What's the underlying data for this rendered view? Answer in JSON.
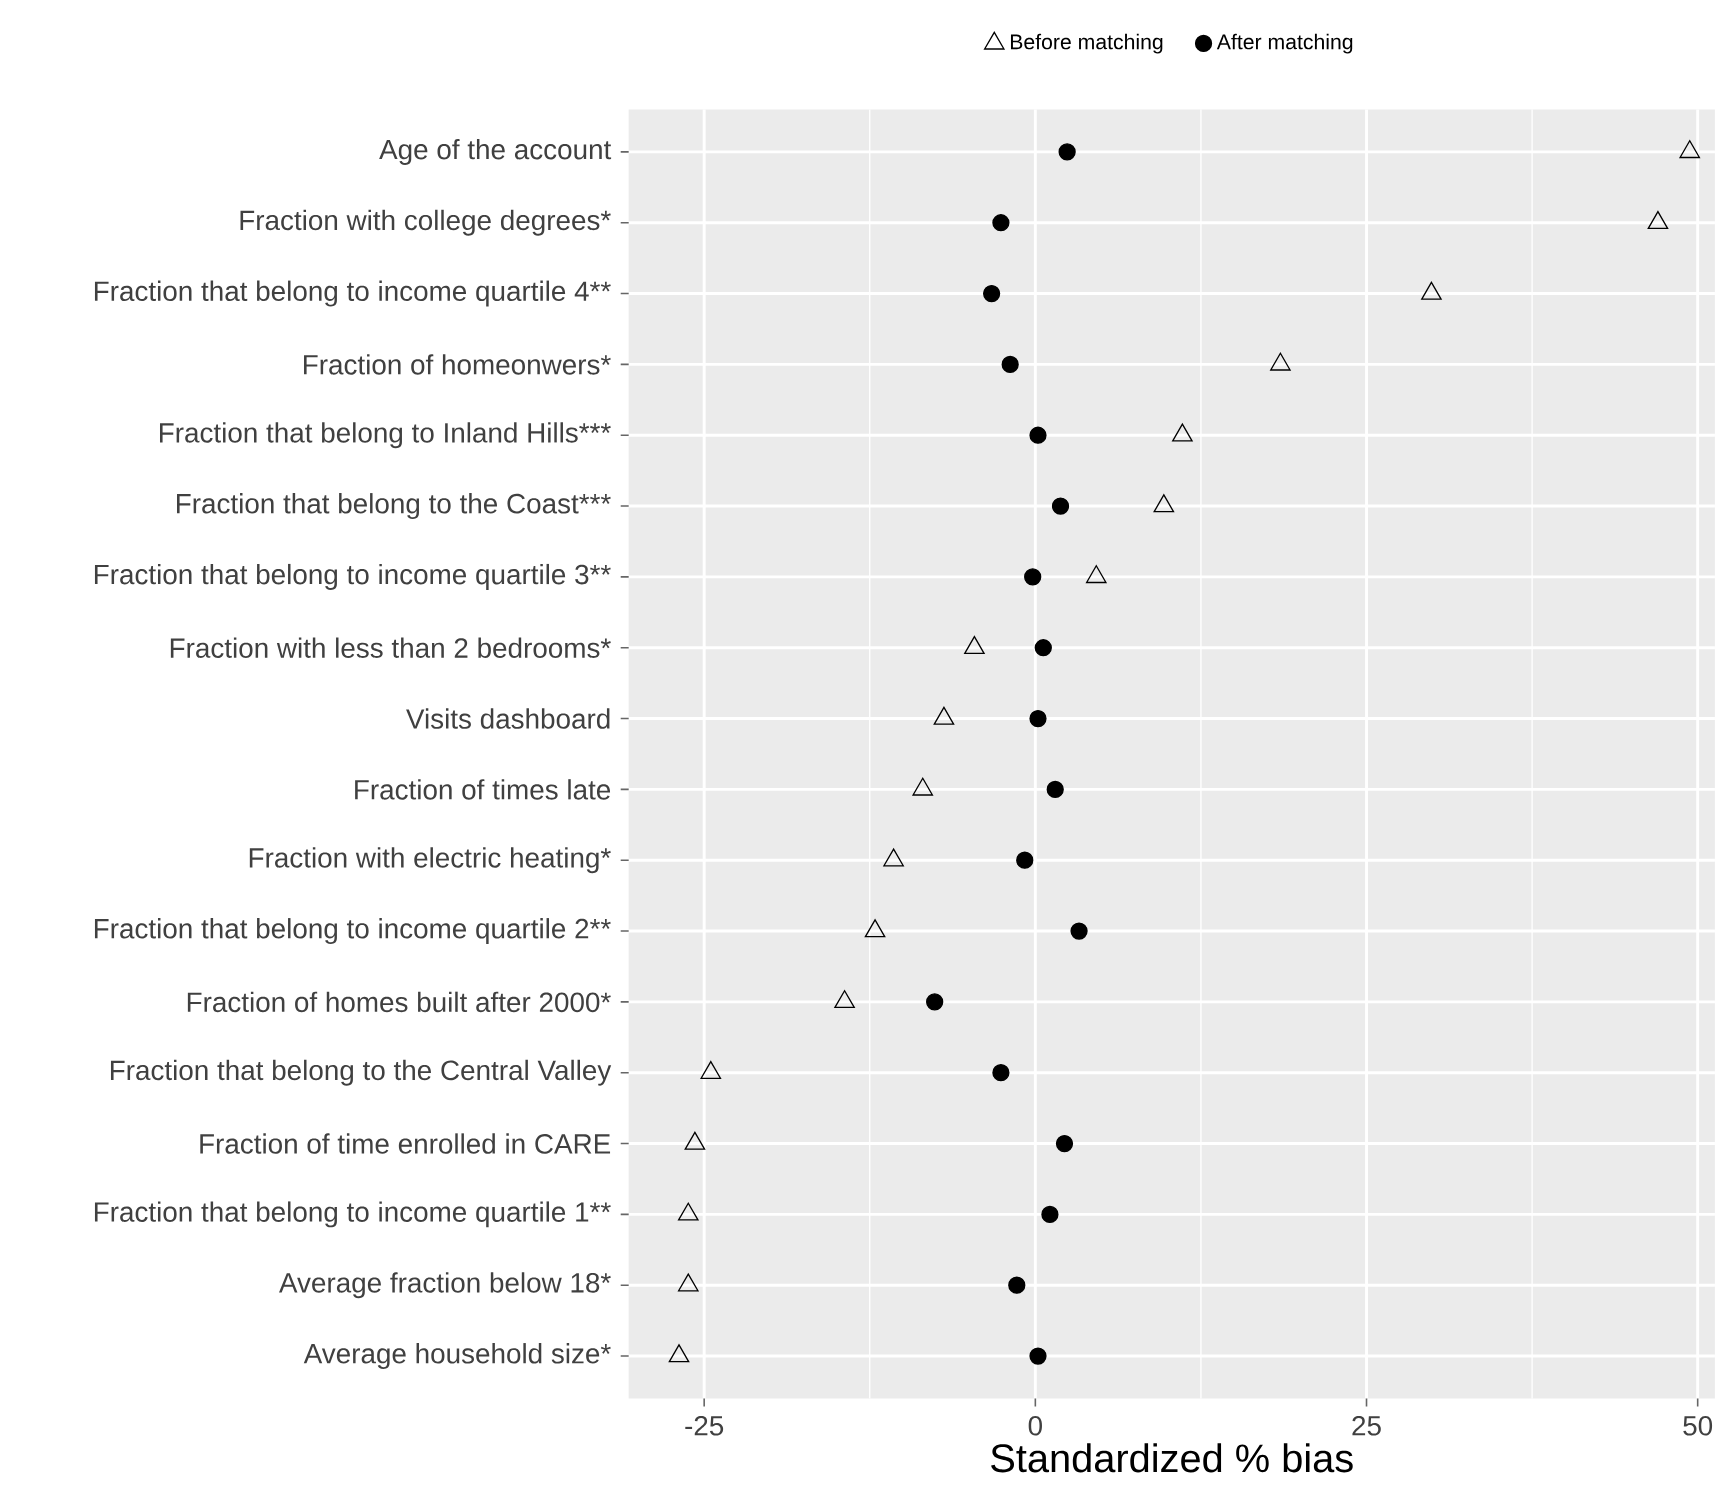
{
  "chart_data": {
    "type": "scatter",
    "xlabel": "Standardized % bias",
    "categories": [
      "Age of the account",
      "Fraction with college degrees*",
      "Fraction that belong to income quartile 4**",
      "Fraction of homeonwers*",
      "Fraction that belong to Inland Hills***",
      "Fraction that belong to the Coast***",
      "Fraction that belong to income quartile 3**",
      "Fraction with less than 2 bedrooms*",
      "Visits dashboard",
      "Fraction of times late",
      "Fraction with electric heating*",
      "Fraction that belong to income quartile 2**",
      "Fraction of homes built after 2000*",
      "Fraction that belong to the Central Valley",
      "Fraction of time enrolled in CARE",
      "Fraction that belong to income quartile 1**",
      "Average fraction below 18*",
      "Average household size*"
    ],
    "series": [
      {
        "name": "Before matching",
        "color": "#000000",
        "marker": "triangle",
        "values": [
          49.4,
          47.0,
          29.9,
          18.5,
          11.1,
          9.7,
          4.6,
          -4.6,
          -6.9,
          -8.5,
          -10.7,
          -12.1,
          -14.4,
          -24.5,
          -25.7,
          -26.2,
          -26.2,
          -26.9
        ]
      },
      {
        "name": "After matching",
        "color": "#000000",
        "marker": "circle",
        "values": [
          2.4,
          -2.6,
          -3.3,
          -1.9,
          0.2,
          1.9,
          -0.2,
          0.6,
          0.2,
          1.5,
          -0.8,
          3.3,
          -7.6,
          -2.6,
          2.2,
          1.1,
          -1.4,
          0.2
        ]
      }
    ],
    "xlim": [
      -30.7,
      51.3
    ],
    "xticks": [
      -25,
      0,
      25,
      50
    ],
    "grid": true,
    "legend": "top",
    "orientation": "horizontal"
  }
}
